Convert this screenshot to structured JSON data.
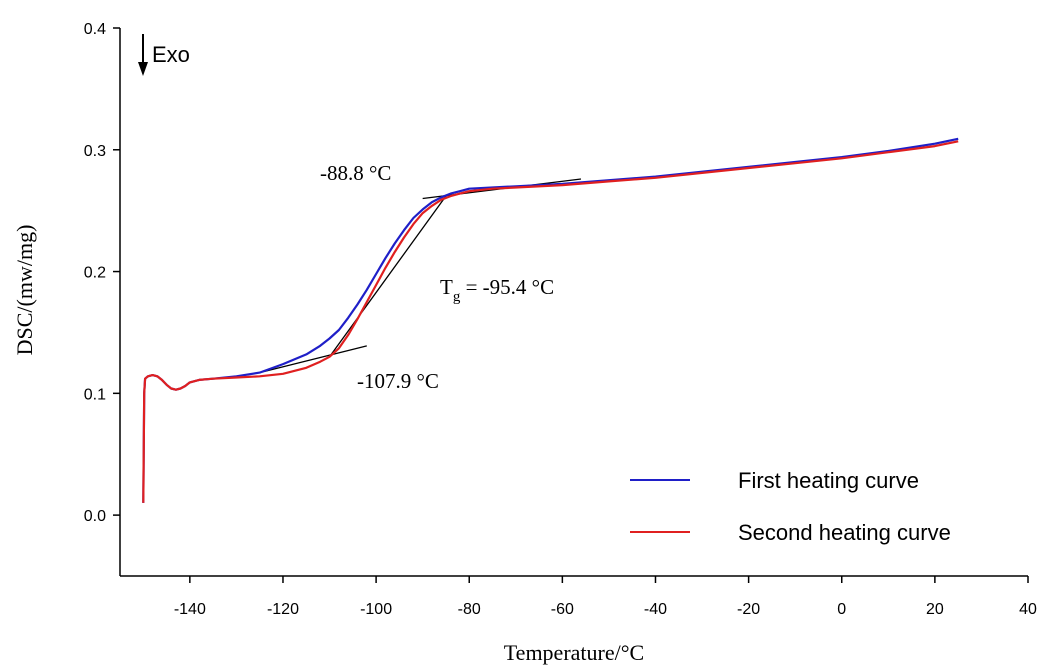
{
  "chart_data": {
    "type": "line",
    "title": "",
    "xlabel": "Temperature/°C",
    "ylabel": "DSC/(mw/mg)",
    "xlim": [
      -155,
      40
    ],
    "ylim": [
      -0.05,
      0.4
    ],
    "x_ticks": [
      -140,
      -120,
      -100,
      -80,
      -60,
      -40,
      -20,
      0,
      20,
      40
    ],
    "x_tick_labels": [
      "-140",
      "-120",
      "-100",
      "-80",
      "-60",
      "-40",
      "-20",
      "0",
      "20",
      "40"
    ],
    "y_ticks": [
      0.0,
      0.1,
      0.2,
      0.3,
      0.4
    ],
    "y_tick_labels": [
      "0.0",
      "0.1",
      "0.2",
      "0.3",
      "0.4"
    ],
    "grid": false,
    "legend_position": "bottom-right",
    "exo_label": "Exo",
    "series": [
      {
        "name": "First heating curve",
        "color": "#1f1fc8",
        "points": [
          [
            -150,
            0.01
          ],
          [
            -149.9,
            0.05
          ],
          [
            -149.8,
            0.1
          ],
          [
            -149.6,
            0.112
          ],
          [
            -149.0,
            0.114
          ],
          [
            -148,
            0.115
          ],
          [
            -147,
            0.114
          ],
          [
            -146,
            0.111
          ],
          [
            -145,
            0.107
          ],
          [
            -144,
            0.104
          ],
          [
            -143,
            0.103
          ],
          [
            -142,
            0.104
          ],
          [
            -141,
            0.106
          ],
          [
            -140,
            0.109
          ],
          [
            -138,
            0.111
          ],
          [
            -135,
            0.112
          ],
          [
            -130,
            0.114
          ],
          [
            -125,
            0.117
          ],
          [
            -120,
            0.124
          ],
          [
            -115,
            0.132
          ],
          [
            -112,
            0.139
          ],
          [
            -110,
            0.145
          ],
          [
            -108,
            0.152
          ],
          [
            -106,
            0.162
          ],
          [
            -104,
            0.173
          ],
          [
            -102,
            0.185
          ],
          [
            -100,
            0.198
          ],
          [
            -98,
            0.211
          ],
          [
            -96,
            0.223
          ],
          [
            -94,
            0.234
          ],
          [
            -92,
            0.244
          ],
          [
            -90,
            0.251
          ],
          [
            -88,
            0.257
          ],
          [
            -86,
            0.261
          ],
          [
            -84,
            0.264
          ],
          [
            -82,
            0.266
          ],
          [
            -80,
            0.268
          ],
          [
            -75,
            0.269
          ],
          [
            -70,
            0.27
          ],
          [
            -60,
            0.272
          ],
          [
            -50,
            0.275
          ],
          [
            -40,
            0.278
          ],
          [
            -30,
            0.282
          ],
          [
            -20,
            0.286
          ],
          [
            -10,
            0.29
          ],
          [
            0,
            0.294
          ],
          [
            10,
            0.299
          ],
          [
            20,
            0.305
          ],
          [
            25,
            0.309
          ]
        ]
      },
      {
        "name": "Second heating curve",
        "color": "#e02020",
        "points": [
          [
            -150,
            0.01
          ],
          [
            -149.9,
            0.05
          ],
          [
            -149.8,
            0.1
          ],
          [
            -149.6,
            0.112
          ],
          [
            -149.0,
            0.114
          ],
          [
            -148,
            0.115
          ],
          [
            -147,
            0.114
          ],
          [
            -146,
            0.111
          ],
          [
            -145,
            0.107
          ],
          [
            -144,
            0.104
          ],
          [
            -143,
            0.103
          ],
          [
            -142,
            0.104
          ],
          [
            -141,
            0.106
          ],
          [
            -140,
            0.109
          ],
          [
            -138,
            0.111
          ],
          [
            -135,
            0.112
          ],
          [
            -130,
            0.113
          ],
          [
            -125,
            0.114
          ],
          [
            -120,
            0.116
          ],
          [
            -115,
            0.121
          ],
          [
            -112,
            0.126
          ],
          [
            -110,
            0.13
          ],
          [
            -108,
            0.137
          ],
          [
            -106,
            0.148
          ],
          [
            -104,
            0.161
          ],
          [
            -102,
            0.175
          ],
          [
            -100,
            0.189
          ],
          [
            -98,
            0.203
          ],
          [
            -96,
            0.216
          ],
          [
            -94,
            0.228
          ],
          [
            -92,
            0.239
          ],
          [
            -90,
            0.248
          ],
          [
            -88,
            0.254
          ],
          [
            -86,
            0.259
          ],
          [
            -84,
            0.262
          ],
          [
            -82,
            0.264
          ],
          [
            -80,
            0.266
          ],
          [
            -75,
            0.268
          ],
          [
            -70,
            0.269
          ],
          [
            -60,
            0.271
          ],
          [
            -50,
            0.274
          ],
          [
            -40,
            0.277
          ],
          [
            -30,
            0.281
          ],
          [
            -20,
            0.285
          ],
          [
            -10,
            0.289
          ],
          [
            0,
            0.293
          ],
          [
            10,
            0.298
          ],
          [
            20,
            0.303
          ],
          [
            25,
            0.307
          ]
        ]
      }
    ],
    "tangent_lines": [
      {
        "from": [
          -90,
          0.26
        ],
        "to": [
          -56,
          0.276
        ]
      },
      {
        "from": [
          -125,
          0.117
        ],
        "to": [
          -102,
          0.139
        ]
      },
      {
        "from": [
          -110,
          0.13
        ],
        "to": [
          -85,
          0.262
        ]
      }
    ],
    "annotations": {
      "onset_label": "-107.9 °C",
      "endset_label": "-88.8 °C",
      "tg_prefix": "T",
      "tg_subscript": "g",
      "tg_value": " = -95.4 °C"
    }
  }
}
